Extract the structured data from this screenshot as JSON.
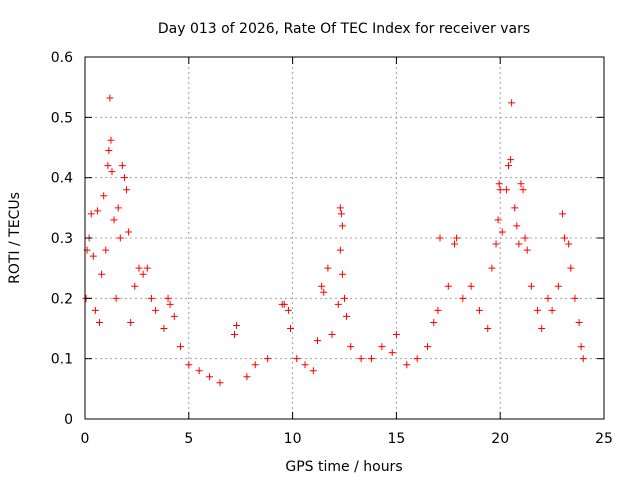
{
  "chart_data": {
    "type": "scatter",
    "title": "Day 013 of 2026, Rate Of TEC Index for receiver vars",
    "xlabel": "GPS time / hours",
    "ylabel": "ROTI / TECUs",
    "xlim": [
      0,
      25
    ],
    "ylim": [
      0,
      0.6
    ],
    "x_ticks": [
      "0",
      "5",
      "10",
      "15",
      "20",
      "25"
    ],
    "y_ticks": [
      "0",
      "0.1",
      "0.2",
      "0.3",
      "0.4",
      "0.5",
      "0.6"
    ],
    "x_tick_values": [
      0,
      5,
      10,
      15,
      20,
      25
    ],
    "y_tick_values": [
      0,
      0.1,
      0.2,
      0.3,
      0.4,
      0.5,
      0.6
    ],
    "grid": true,
    "marker": "+",
    "color": "#ff0000",
    "series": [
      {
        "name": "ROTI",
        "points": [
          [
            1.2,
            0.532
          ],
          [
            1.25,
            0.462
          ],
          [
            1.15,
            0.445
          ],
          [
            1.1,
            0.42
          ],
          [
            1.3,
            0.41
          ],
          [
            0.6,
            0.345
          ],
          [
            0.3,
            0.34
          ],
          [
            0.9,
            0.37
          ],
          [
            1.6,
            0.35
          ],
          [
            1.8,
            0.42
          ],
          [
            1.9,
            0.4
          ],
          [
            2.0,
            0.38
          ],
          [
            1.7,
            0.3
          ],
          [
            2.1,
            0.31
          ],
          [
            0.2,
            0.3
          ],
          [
            0.1,
            0.28
          ],
          [
            0.4,
            0.27
          ],
          [
            0.8,
            0.24
          ],
          [
            1.0,
            0.28
          ],
          [
            1.4,
            0.33
          ],
          [
            2.6,
            0.25
          ],
          [
            2.8,
            0.24
          ],
          [
            3.0,
            0.25
          ],
          [
            3.2,
            0.2
          ],
          [
            2.4,
            0.22
          ],
          [
            3.4,
            0.18
          ],
          [
            4.0,
            0.2
          ],
          [
            4.1,
            0.19
          ],
          [
            4.3,
            0.17
          ],
          [
            3.8,
            0.15
          ],
          [
            0.05,
            0.2
          ],
          [
            0.5,
            0.18
          ],
          [
            0.7,
            0.16
          ],
          [
            1.5,
            0.2
          ],
          [
            2.2,
            0.16
          ],
          [
            4.6,
            0.12
          ],
          [
            5.0,
            0.09
          ],
          [
            5.5,
            0.08
          ],
          [
            6.0,
            0.07
          ],
          [
            6.5,
            0.06
          ],
          [
            7.3,
            0.155
          ],
          [
            7.2,
            0.14
          ],
          [
            7.8,
            0.07
          ],
          [
            8.2,
            0.09
          ],
          [
            8.8,
            0.1
          ],
          [
            9.5,
            0.19
          ],
          [
            9.6,
            0.19
          ],
          [
            9.8,
            0.18
          ],
          [
            9.9,
            0.15
          ],
          [
            10.2,
            0.1
          ],
          [
            10.6,
            0.09
          ],
          [
            11.0,
            0.08
          ],
          [
            11.4,
            0.22
          ],
          [
            11.5,
            0.21
          ],
          [
            11.7,
            0.25
          ],
          [
            11.2,
            0.13
          ],
          [
            11.9,
            0.14
          ],
          [
            12.3,
            0.35
          ],
          [
            12.35,
            0.34
          ],
          [
            12.4,
            0.32
          ],
          [
            12.3,
            0.28
          ],
          [
            12.4,
            0.24
          ],
          [
            12.5,
            0.2
          ],
          [
            12.2,
            0.19
          ],
          [
            12.6,
            0.17
          ],
          [
            12.8,
            0.12
          ],
          [
            13.3,
            0.1
          ],
          [
            13.8,
            0.1
          ],
          [
            14.3,
            0.12
          ],
          [
            14.8,
            0.11
          ],
          [
            15.0,
            0.14
          ],
          [
            15.5,
            0.09
          ],
          [
            16.0,
            0.1
          ],
          [
            16.5,
            0.12
          ],
          [
            16.8,
            0.16
          ],
          [
            17.1,
            0.3
          ],
          [
            17.0,
            0.18
          ],
          [
            17.5,
            0.22
          ],
          [
            17.8,
            0.29
          ],
          [
            17.9,
            0.3
          ],
          [
            18.2,
            0.2
          ],
          [
            18.6,
            0.22
          ],
          [
            19.0,
            0.18
          ],
          [
            19.4,
            0.15
          ],
          [
            19.6,
            0.25
          ],
          [
            19.8,
            0.29
          ],
          [
            19.9,
            0.33
          ],
          [
            19.95,
            0.39
          ],
          [
            20.0,
            0.38
          ],
          [
            20.1,
            0.31
          ],
          [
            20.3,
            0.38
          ],
          [
            20.4,
            0.42
          ],
          [
            20.5,
            0.43
          ],
          [
            20.55,
            0.524
          ],
          [
            20.7,
            0.35
          ],
          [
            20.8,
            0.32
          ],
          [
            20.9,
            0.29
          ],
          [
            21.0,
            0.39
          ],
          [
            21.1,
            0.38
          ],
          [
            21.2,
            0.3
          ],
          [
            21.3,
            0.28
          ],
          [
            21.5,
            0.22
          ],
          [
            21.8,
            0.18
          ],
          [
            22.0,
            0.15
          ],
          [
            22.3,
            0.2
          ],
          [
            22.5,
            0.18
          ],
          [
            22.8,
            0.22
          ],
          [
            23.0,
            0.34
          ],
          [
            23.1,
            0.3
          ],
          [
            23.3,
            0.29
          ],
          [
            23.4,
            0.25
          ],
          [
            23.6,
            0.2
          ],
          [
            23.8,
            0.16
          ],
          [
            23.9,
            0.12
          ],
          [
            24.0,
            0.1
          ]
        ]
      }
    ]
  }
}
